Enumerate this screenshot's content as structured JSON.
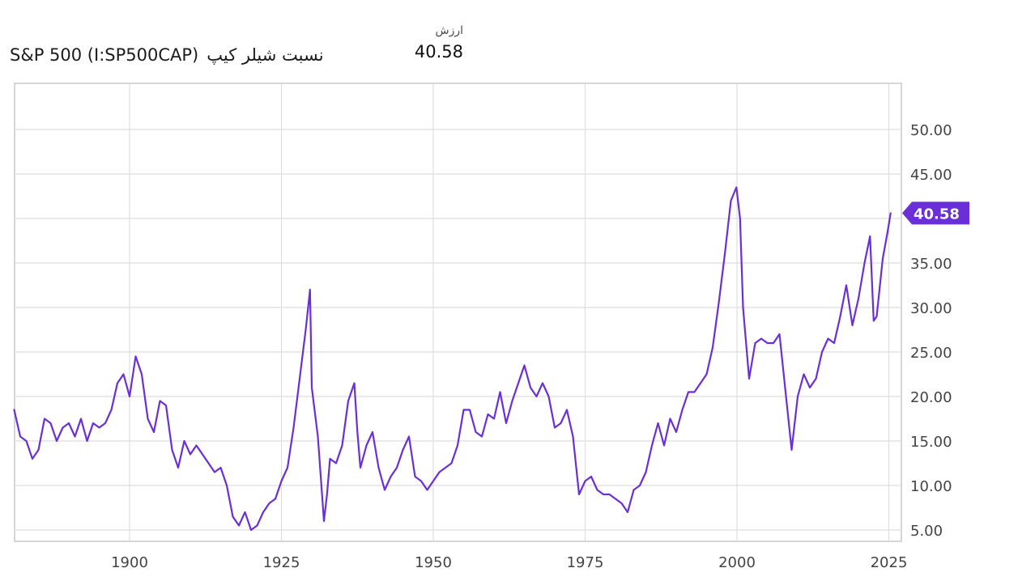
{
  "header": {
    "series_name": "S&P 500 (I:SP500CAP)",
    "metric_name": "نسبت شیلر کیپ",
    "value_label": "ارزش",
    "value": "40.58"
  },
  "chart_data": {
    "type": "line",
    "title": "S&P 500 (I:SP500CAP) نسبت شیلر کیپ",
    "xlabel": "",
    "ylabel": "",
    "xlim": [
      1881,
      2026
    ],
    "ylim": [
      4,
      55
    ],
    "x_ticks": [
      1900,
      1925,
      1950,
      1975,
      2000,
      2025
    ],
    "y_ticks": [
      5,
      10,
      15,
      20,
      25,
      30,
      35,
      40,
      45,
      50
    ],
    "y_tick_labels": [
      "5.00",
      "10.00",
      "15.00",
      "20.00",
      "25.00",
      "30.00",
      "35.00",
      "40.00",
      "45.00",
      "50.00"
    ],
    "line_color": "#6a2fd6",
    "grid": true,
    "last_value_label": "40.58",
    "series": [
      {
        "x": [
          1881,
          1882,
          1883,
          1884,
          1885,
          1886,
          1887,
          1888,
          1889,
          1890,
          1891,
          1892,
          1893,
          1894,
          1895,
          1896,
          1897,
          1898,
          1899,
          1900,
          1901,
          1902,
          1903,
          1904,
          1905,
          1906,
          1907,
          1908,
          1909,
          1910,
          1911,
          1912,
          1913,
          1914,
          1915,
          1916,
          1917,
          1918,
          1919,
          1920,
          1921,
          1922,
          1923,
          1924,
          1925,
          1926,
          1927,
          1928,
          1929,
          1929.7,
          1930,
          1931,
          1932,
          1932.5,
          1933,
          1934,
          1935,
          1936,
          1937,
          1937.5,
          1938,
          1939,
          1940,
          1941,
          1942,
          1943,
          1944,
          1945,
          1946,
          1947,
          1948,
          1949,
          1950,
          1951,
          1952,
          1953,
          1954,
          1955,
          1956,
          1957,
          1958,
          1959,
          1960,
          1961,
          1962,
          1963,
          1964,
          1965,
          1966,
          1967,
          1968,
          1969,
          1970,
          1971,
          1972,
          1973,
          1974,
          1975,
          1976,
          1977,
          1978,
          1979,
          1980,
          1981,
          1982,
          1983,
          1984,
          1985,
          1986,
          1987,
          1988,
          1989,
          1990,
          1991,
          1992,
          1993,
          1994,
          1995,
          1996,
          1997,
          1998,
          1999,
          1999.9,
          2000.5,
          2001,
          2002,
          2003,
          2004,
          2005,
          2006,
          2007,
          2008,
          2009,
          2010,
          2011,
          2012,
          2013,
          2014,
          2015,
          2016,
          2017,
          2018,
          2019,
          2020,
          2021,
          2021.9,
          2022.5,
          2023,
          2024,
          2024.8,
          2025.3
        ],
        "y": [
          18.5,
          15.5,
          15.0,
          13.0,
          14.0,
          17.5,
          17.0,
          15.0,
          16.5,
          17.0,
          15.5,
          17.5,
          15.0,
          17.0,
          16.5,
          17.0,
          18.5,
          21.5,
          22.5,
          20.0,
          24.5,
          22.5,
          17.5,
          16.0,
          19.5,
          19.0,
          14.0,
          12.0,
          15.0,
          13.5,
          14.5,
          13.5,
          12.5,
          11.5,
          12.0,
          10.0,
          6.5,
          5.5,
          7.0,
          5.0,
          5.5,
          7.0,
          8.0,
          8.5,
          10.5,
          12.0,
          16.5,
          22.0,
          27.5,
          32.0,
          21.0,
          15.5,
          6.0,
          9.0,
          13.0,
          12.5,
          14.5,
          19.5,
          21.5,
          16.0,
          12.0,
          14.5,
          16.0,
          12.0,
          9.5,
          11.0,
          12.0,
          14.0,
          15.5,
          11.0,
          10.5,
          9.5,
          10.5,
          11.5,
          12.0,
          12.5,
          14.5,
          18.5,
          18.5,
          16.0,
          15.5,
          18.0,
          17.5,
          20.5,
          17.0,
          19.5,
          21.5,
          23.5,
          21.0,
          20.0,
          21.5,
          20.0,
          16.5,
          17.0,
          18.5,
          15.5,
          9.0,
          10.5,
          11.0,
          9.5,
          9.0,
          9.0,
          8.5,
          8.0,
          7.0,
          9.5,
          10.0,
          11.5,
          14.5,
          17.0,
          14.5,
          17.5,
          16.0,
          18.5,
          20.5,
          20.5,
          21.5,
          22.5,
          25.5,
          30.5,
          36.0,
          42.0,
          43.5,
          40.0,
          30.0,
          22.0,
          26.0,
          26.5,
          26.0,
          26.0,
          27.0,
          20.5,
          14.0,
          20.0,
          22.5,
          21.0,
          22.0,
          25.0,
          26.5,
          26.0,
          29.0,
          32.5,
          28.0,
          31.0,
          35.0,
          38.0,
          28.5,
          29.0,
          35.5,
          38.5,
          40.6
        ]
      }
    ]
  }
}
